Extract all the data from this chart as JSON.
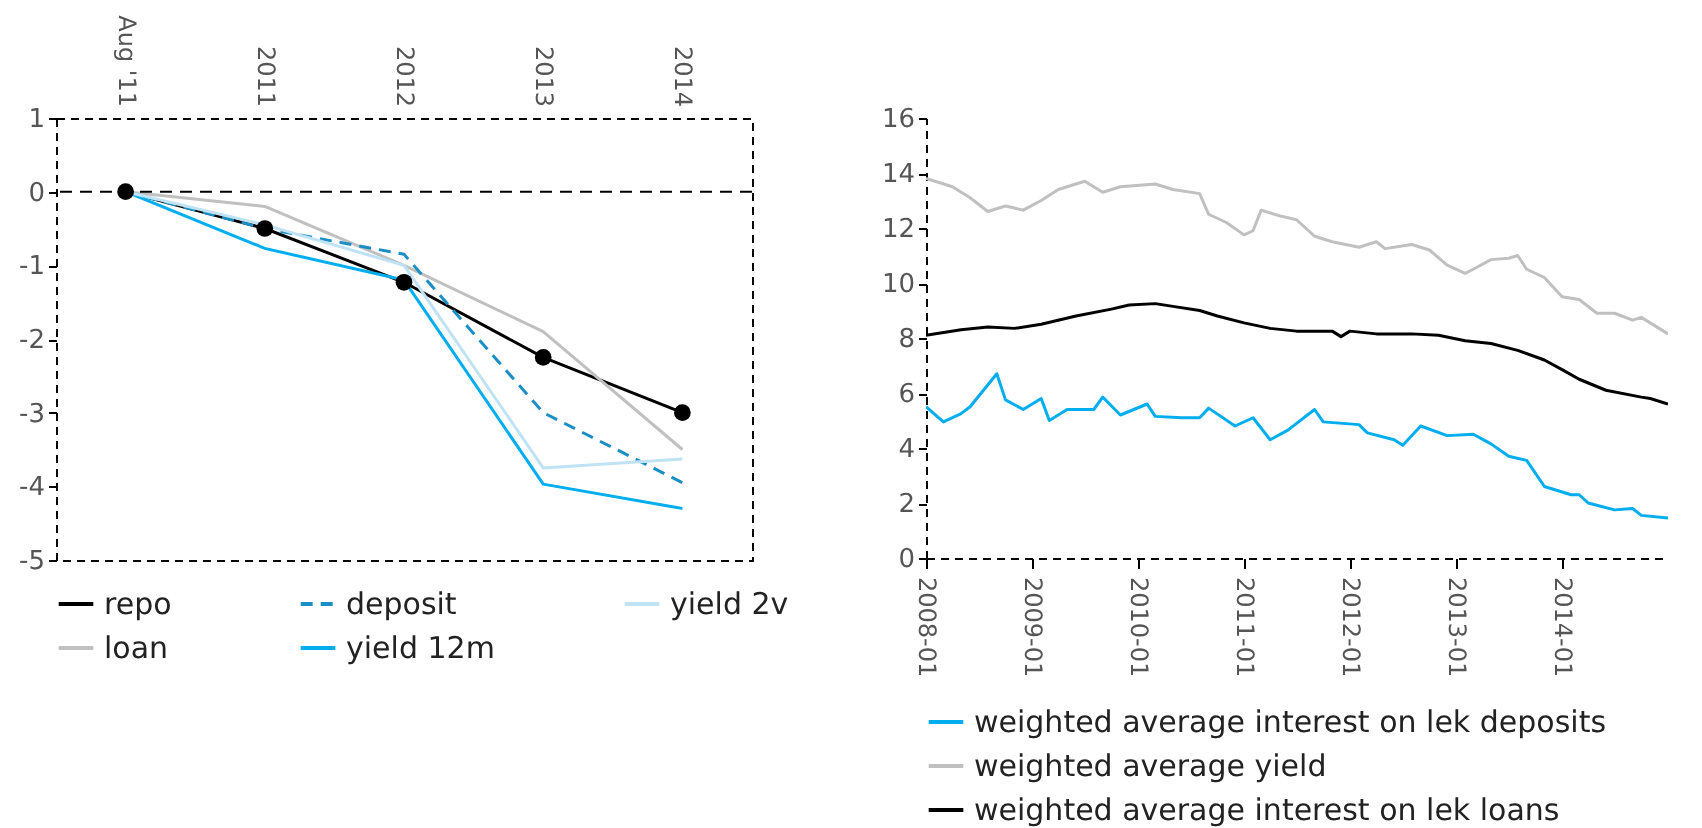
{
  "chart_data": [
    {
      "type": "line",
      "categories": [
        "Aug '11",
        "2011",
        "2012",
        "2013",
        "2014"
      ],
      "ylim": [
        -5,
        1
      ],
      "yticks": [
        -5,
        -4,
        -3,
        -2,
        -1,
        0,
        1
      ],
      "grid": false,
      "legend": "bottom",
      "ref_lines": [
        {
          "axis": "y",
          "value": 0,
          "line_style": "dashed",
          "color": "#000000"
        }
      ],
      "series": [
        {
          "name": "repo",
          "color": "#000000",
          "marker": "circle",
          "values": [
            0,
            -0.5,
            -1.23,
            -2.25,
            -3.0
          ]
        },
        {
          "name": "loan",
          "color": "#c0c0c0",
          "values": [
            0,
            -0.2,
            -1.0,
            -1.9,
            -3.5
          ]
        },
        {
          "name": "deposit",
          "color": "#1a8fc6",
          "line_style": "dashed",
          "values": [
            0,
            -0.5,
            -0.85,
            -3.0,
            -3.95
          ]
        },
        {
          "name": "yield 12m",
          "color": "#00aeef",
          "values": [
            0,
            -0.77,
            -1.2,
            -3.97,
            -4.3
          ]
        },
        {
          "name": "yield 2v",
          "color": "#bfe3f5",
          "values": [
            0,
            -0.45,
            -1.0,
            -3.75,
            -3.63
          ]
        }
      ]
    },
    {
      "type": "line",
      "xlim": [
        "2008-01",
        "2015-01"
      ],
      "xticks": [
        "2008-01",
        "2009-01",
        "2010-01",
        "2011-01",
        "2012-01",
        "2013-01",
        "2014-01"
      ],
      "ylim": [
        0,
        16
      ],
      "yticks": [
        0,
        2,
        4,
        6,
        8,
        10,
        12,
        14,
        16
      ],
      "grid": false,
      "legend": "bottom",
      "series": [
        {
          "name": "weighted average interest on lek deposits",
          "color": "#00aeef",
          "x": [
            "2008-01",
            "2008-03",
            "2008-05",
            "2008-06",
            "2008-09",
            "2008-10",
            "2008-12",
            "2009-02",
            "2009-03",
            "2009-05",
            "2009-08",
            "2009-09",
            "2009-11",
            "2010-02",
            "2010-03",
            "2010-06",
            "2010-08",
            "2010-09",
            "2010-12",
            "2011-02",
            "2011-04",
            "2011-06",
            "2011-09",
            "2011-10",
            "2012-02",
            "2012-03",
            "2012-06",
            "2012-07",
            "2012-09",
            "2012-12",
            "2013-03",
            "2013-05",
            "2013-07",
            "2013-09",
            "2013-11",
            "2014-02",
            "2014-03",
            "2014-04",
            "2014-07",
            "2014-09",
            "2014-10",
            "2015-01"
          ],
          "values": [
            5.5,
            4.95,
            5.25,
            5.5,
            6.7,
            5.75,
            5.4,
            5.8,
            5.0,
            5.4,
            5.4,
            5.85,
            5.2,
            5.6,
            5.15,
            5.1,
            5.1,
            5.45,
            4.8,
            5.1,
            4.3,
            4.65,
            5.4,
            4.95,
            4.85,
            4.55,
            4.3,
            4.1,
            4.8,
            4.45,
            4.5,
            4.15,
            3.7,
            3.55,
            2.6,
            2.3,
            2.3,
            2.0,
            1.75,
            1.8,
            1.55,
            1.45
          ]
        },
        {
          "name": "weighted average yield",
          "color": "#c0c0c0",
          "x": [
            "2008-01",
            "2008-04",
            "2008-06",
            "2008-08",
            "2008-10",
            "2008-12",
            "2009-02",
            "2009-04",
            "2009-07",
            "2009-09",
            "2009-11",
            "2010-03",
            "2010-05",
            "2010-08",
            "2010-09",
            "2010-11",
            "2011-01",
            "2011-02",
            "2011-03",
            "2011-05",
            "2011-07",
            "2011-09",
            "2011-11",
            "2012-02",
            "2012-04",
            "2012-05",
            "2012-08",
            "2012-10",
            "2012-12",
            "2013-02",
            "2013-03",
            "2013-05",
            "2013-07",
            "2013-08",
            "2013-09",
            "2013-11",
            "2014-01",
            "2014-03",
            "2014-05",
            "2014-07",
            "2014-09",
            "2014-10",
            "2015-01"
          ],
          "values": [
            13.8,
            13.5,
            13.1,
            12.6,
            12.8,
            12.65,
            13.0,
            13.4,
            13.7,
            13.3,
            13.5,
            13.6,
            13.4,
            13.25,
            12.5,
            12.2,
            11.75,
            11.9,
            12.65,
            12.45,
            12.3,
            11.7,
            11.5,
            11.3,
            11.5,
            11.25,
            11.4,
            11.2,
            10.65,
            10.35,
            10.5,
            10.85,
            10.9,
            11.0,
            10.5,
            10.2,
            9.5,
            9.4,
            8.9,
            8.9,
            8.65,
            8.75,
            8.15
          ]
        },
        {
          "name": "weighted average interest on lek loans",
          "color": "#000000",
          "x": [
            "2008-01",
            "2008-05",
            "2008-08",
            "2008-11",
            "2009-02",
            "2009-06",
            "2009-10",
            "2009-12",
            "2010-03",
            "2010-05",
            "2010-08",
            "2010-10",
            "2011-01",
            "2011-04",
            "2011-07",
            "2011-11",
            "2011-12",
            "2012-01",
            "2012-04",
            "2012-08",
            "2012-11",
            "2013-02",
            "2013-05",
            "2013-08",
            "2013-11",
            "2014-01",
            "2014-03",
            "2014-06",
            "2014-10",
            "2014-11",
            "2015-01"
          ],
          "values": [
            8.1,
            8.3,
            8.4,
            8.35,
            8.5,
            8.8,
            9.05,
            9.2,
            9.25,
            9.15,
            9.0,
            8.8,
            8.55,
            8.35,
            8.25,
            8.25,
            8.05,
            8.25,
            8.15,
            8.15,
            8.1,
            7.9,
            7.8,
            7.55,
            7.2,
            6.85,
            6.5,
            6.1,
            5.85,
            5.8,
            5.6
          ]
        }
      ]
    }
  ]
}
